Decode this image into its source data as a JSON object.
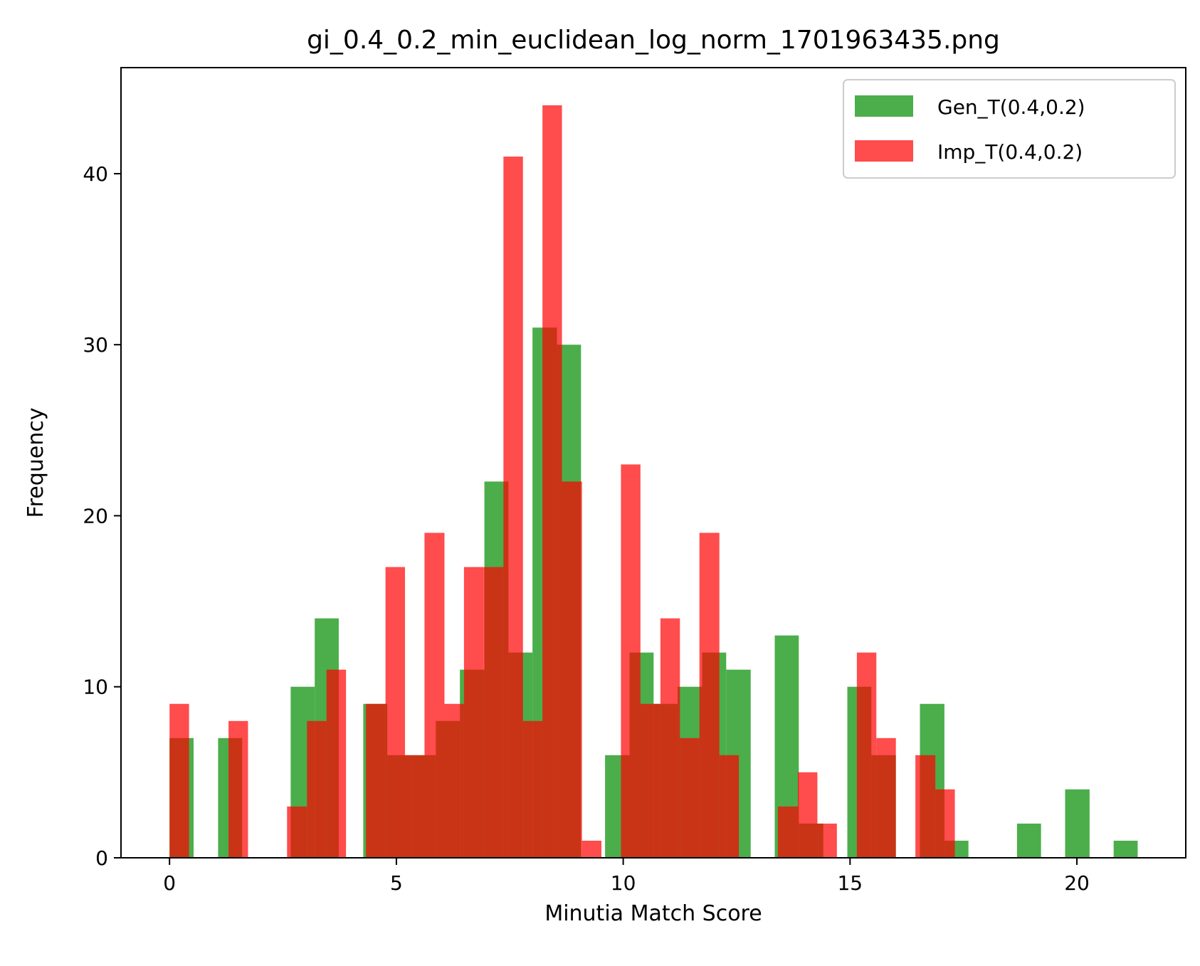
{
  "chart_data": {
    "type": "bar",
    "title": "gi_0.4_0.2_min_euclidean_log_norm_1701963435.png",
    "xlabel": "Minutia Match Score",
    "ylabel": "Frequency",
    "xlim": [
      -1.07,
      22.4
    ],
    "ylim": [
      0,
      46.2
    ],
    "xticks": [
      0,
      5,
      10,
      15,
      20
    ],
    "yticks": [
      0,
      10,
      20,
      30,
      40
    ],
    "grid": false,
    "legend": "top-right",
    "overlap_color": "#c8301a",
    "series": [
      {
        "name": "Gen_T(0.4,0.2)",
        "color": "#2ca02c",
        "opacity": 0.85,
        "bins": [
          {
            "x0": 0.0,
            "x1": 0.53,
            "y": 7
          },
          {
            "x0": 1.07,
            "x1": 1.6,
            "y": 7
          },
          {
            "x0": 2.67,
            "x1": 3.2,
            "y": 10
          },
          {
            "x0": 3.2,
            "x1": 3.73,
            "y": 14
          },
          {
            "x0": 4.27,
            "x1": 4.8,
            "y": 9
          },
          {
            "x0": 4.8,
            "x1": 5.34,
            "y": 6
          },
          {
            "x0": 5.34,
            "x1": 5.87,
            "y": 6
          },
          {
            "x0": 5.87,
            "x1": 6.4,
            "y": 8
          },
          {
            "x0": 6.4,
            "x1": 6.94,
            "y": 11
          },
          {
            "x0": 6.94,
            "x1": 7.47,
            "y": 22
          },
          {
            "x0": 7.47,
            "x1": 8.0,
            "y": 12
          },
          {
            "x0": 8.0,
            "x1": 8.54,
            "y": 31
          },
          {
            "x0": 8.54,
            "x1": 9.07,
            "y": 30
          },
          {
            "x0": 9.6,
            "x1": 10.14,
            "y": 6
          },
          {
            "x0": 10.14,
            "x1": 10.67,
            "y": 12
          },
          {
            "x0": 10.67,
            "x1": 11.2,
            "y": 9
          },
          {
            "x0": 11.2,
            "x1": 11.74,
            "y": 10
          },
          {
            "x0": 11.74,
            "x1": 12.27,
            "y": 12
          },
          {
            "x0": 12.27,
            "x1": 12.81,
            "y": 11
          },
          {
            "x0": 13.34,
            "x1": 13.87,
            "y": 13
          },
          {
            "x0": 13.87,
            "x1": 14.41,
            "y": 2
          },
          {
            "x0": 14.94,
            "x1": 15.47,
            "y": 10
          },
          {
            "x0": 15.47,
            "x1": 16.01,
            "y": 6
          },
          {
            "x0": 16.54,
            "x1": 17.08,
            "y": 9
          },
          {
            "x0": 17.08,
            "x1": 17.61,
            "y": 1
          },
          {
            "x0": 18.68,
            "x1": 19.21,
            "y": 2
          },
          {
            "x0": 19.74,
            "x1": 20.28,
            "y": 4
          },
          {
            "x0": 20.81,
            "x1": 21.34,
            "y": 1
          }
        ]
      },
      {
        "name": "Imp_T(0.4,0.2)",
        "color": "#ff0000",
        "opacity": 0.7,
        "bins": [
          {
            "x0": 0.0,
            "x1": 0.43,
            "y": 9
          },
          {
            "x0": 1.3,
            "x1": 1.73,
            "y": 8
          },
          {
            "x0": 2.59,
            "x1": 3.03,
            "y": 3
          },
          {
            "x0": 3.03,
            "x1": 3.46,
            "y": 8
          },
          {
            "x0": 3.46,
            "x1": 3.89,
            "y": 11
          },
          {
            "x0": 4.33,
            "x1": 4.76,
            "y": 9
          },
          {
            "x0": 4.76,
            "x1": 5.19,
            "y": 17
          },
          {
            "x0": 5.19,
            "x1": 5.62,
            "y": 6
          },
          {
            "x0": 5.62,
            "x1": 6.06,
            "y": 19
          },
          {
            "x0": 6.06,
            "x1": 6.49,
            "y": 9
          },
          {
            "x0": 6.49,
            "x1": 6.92,
            "y": 17
          },
          {
            "x0": 6.92,
            "x1": 7.36,
            "y": 17
          },
          {
            "x0": 7.36,
            "x1": 7.79,
            "y": 41
          },
          {
            "x0": 7.79,
            "x1": 8.22,
            "y": 8
          },
          {
            "x0": 8.22,
            "x1": 8.65,
            "y": 44
          },
          {
            "x0": 8.65,
            "x1": 9.09,
            "y": 22
          },
          {
            "x0": 9.09,
            "x1": 9.52,
            "y": 1
          },
          {
            "x0": 9.95,
            "x1": 10.38,
            "y": 23
          },
          {
            "x0": 10.38,
            "x1": 10.82,
            "y": 9
          },
          {
            "x0": 10.82,
            "x1": 11.25,
            "y": 14
          },
          {
            "x0": 11.25,
            "x1": 11.68,
            "y": 7
          },
          {
            "x0": 11.68,
            "x1": 12.12,
            "y": 19
          },
          {
            "x0": 12.12,
            "x1": 12.55,
            "y": 6
          },
          {
            "x0": 13.41,
            "x1": 13.85,
            "y": 3
          },
          {
            "x0": 13.85,
            "x1": 14.28,
            "y": 5
          },
          {
            "x0": 14.28,
            "x1": 14.71,
            "y": 2
          },
          {
            "x0": 15.15,
            "x1": 15.58,
            "y": 12
          },
          {
            "x0": 15.58,
            "x1": 16.01,
            "y": 7
          },
          {
            "x0": 16.44,
            "x1": 16.88,
            "y": 6
          },
          {
            "x0": 16.88,
            "x1": 17.31,
            "y": 4
          }
        ]
      }
    ]
  }
}
